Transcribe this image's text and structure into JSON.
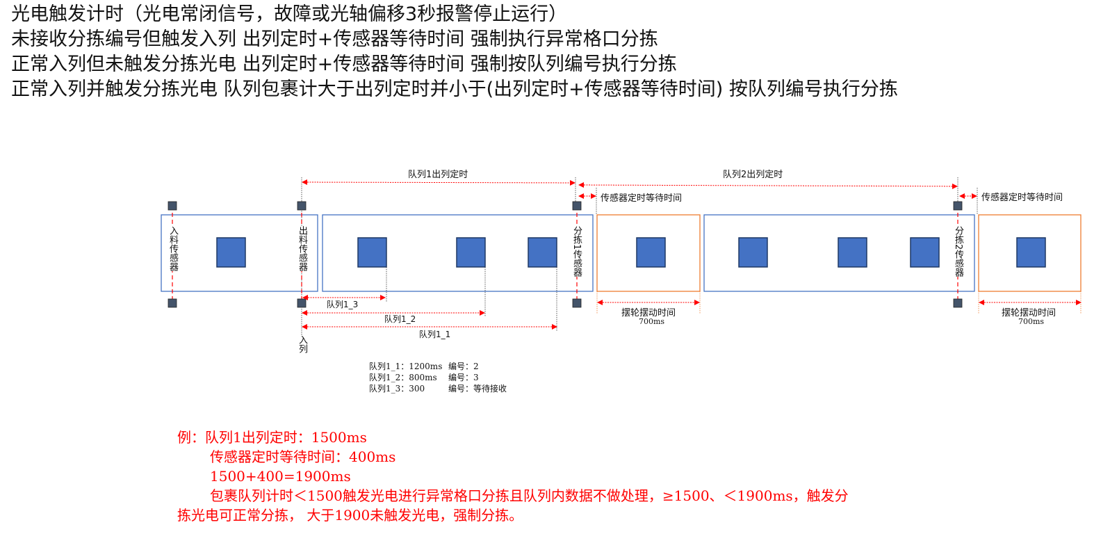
{
  "header_lines": [
    "光电触发计时（光电常闭信号，故障或光轴偏移3秒报警停止运行）",
    "未接收分拣编号但触发入列   出列定时+传感器等待时间 强制执行异常格口分拣",
    "正常入列但未触发分拣光电  出列定时+传感器等待时间 强制按队列编号执行分拣",
    "正常入列并触发分拣光电  队列包裹计大于出列定时并小于(出列定时+传感器等待时间) 按队列编号执行分拣"
  ],
  "diagram": {
    "queue1_dequeue_timer": "队列1出列定时",
    "queue2_dequeue_timer": "队列2出列定时",
    "sensor_wait_1": "传感器定时等待时间",
    "sensor_wait_2": "传感器定时等待时间",
    "sensors": {
      "infeed": "入料传感器",
      "outfeed": "出料传感器",
      "sort1": "分拣1传感器",
      "sort2": "分拣2传感器"
    },
    "enqueue": "入列",
    "queue_items": [
      "队列1_3",
      "队列1_2",
      "队列1_1"
    ],
    "swing_1": {
      "label": "摆轮摆动时间",
      "value": "700ms"
    },
    "swing_2": {
      "label": "摆轮摆动时间",
      "value": "700ms"
    },
    "colors": {
      "box_blue": "#4472c4",
      "box_orange": "#ed7d31",
      "sensor": "#44546a",
      "arrow": "#ff0000"
    }
  },
  "info": [
    {
      "queue": "队列1_1：1200ms",
      "code": "编号：2"
    },
    {
      "queue": "队列1_2：800ms",
      "code": "编号：3"
    },
    {
      "queue": "队列1_3：300",
      "code": "编号：等待接收"
    }
  ],
  "example": {
    "line1": "例：队列1出列定时：1500ms",
    "line2": "传感器定时等待时间：400ms",
    "line3": "1500+400=1900ms",
    "line4": "包裹队列计时＜1500触发光电进行异常格口分拣且队列内数据不做处理，≥1500、＜1900ms，触发分",
    "line5": "拣光电可正常分拣，  大于1900未触发光电，强制分拣。"
  }
}
